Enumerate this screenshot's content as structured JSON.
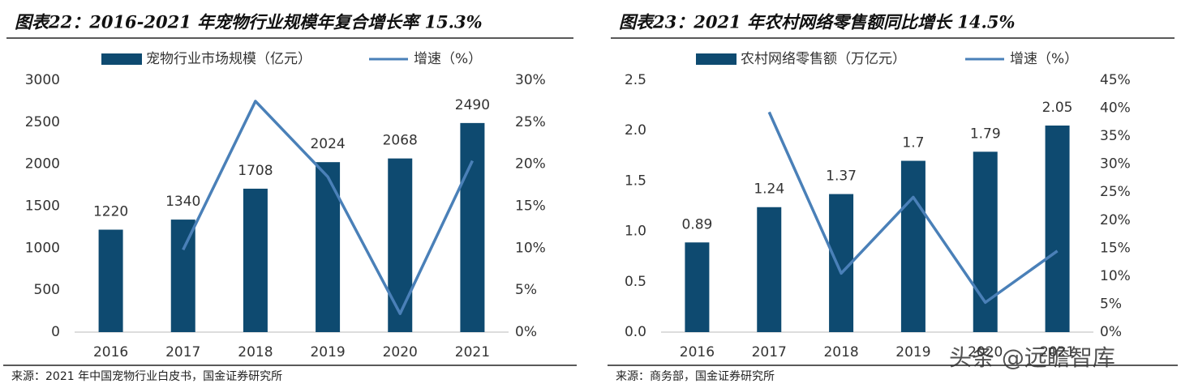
{
  "chart_data": [
    {
      "type": "bar",
      "title": "图表22：2016-2021 年宠物行业规模年复合增长率 15.3%",
      "categories": [
        "2016",
        "2017",
        "2018",
        "2019",
        "2020",
        "2021"
      ],
      "series": [
        {
          "name": "宠物行业市场规模（亿元）",
          "color": "#0e4a70",
          "values": [
            1220,
            1340,
            1708,
            2024,
            2068,
            2490
          ]
        },
        {
          "name": "增速（%）",
          "color": "#4a80b8",
          "axis": "y2",
          "values": [
            null,
            9.8,
            27.5,
            18.5,
            2.2,
            20.4
          ]
        }
      ],
      "ylim": [
        0,
        3000
      ],
      "yticks": [
        0,
        500,
        1000,
        1500,
        2000,
        2500,
        3000
      ],
      "y2lim": [
        0,
        30
      ],
      "y2ticks": [
        {
          "value": 0,
          "label": "0%"
        },
        {
          "value": 5,
          "label": "5%"
        },
        {
          "value": 10,
          "label": "10%"
        },
        {
          "value": 15,
          "label": "15%"
        },
        {
          "value": 20,
          "label": "20%"
        },
        {
          "value": 25,
          "label": "25%"
        },
        {
          "value": 30,
          "label": "30%"
        }
      ],
      "source": "来源：2021 年中国宠物行业白皮书，国金证券研究所"
    },
    {
      "type": "bar",
      "title": "图表23：2021 年农村网络零售额同比增长 14.5%",
      "categories": [
        "2016",
        "2017",
        "2018",
        "2019",
        "2020",
        "2021"
      ],
      "series": [
        {
          "name": "农村网络零售额（万亿元）",
          "color": "#0e4a70",
          "values": [
            0.89,
            1.24,
            1.37,
            1.7,
            1.79,
            2.05
          ]
        },
        {
          "name": "增速（%）",
          "color": "#4a80b8",
          "axis": "y2",
          "values": [
            null,
            39.3,
            10.5,
            24.1,
            5.3,
            14.5
          ]
        }
      ],
      "ylim": [
        0,
        2.5
      ],
      "yticks": [
        {
          "value": 0,
          "label": "0.0"
        },
        0.5,
        {
          "value": 1,
          "label": "1.0"
        },
        1.5,
        {
          "value": 2,
          "label": "2.0"
        },
        2.5
      ],
      "y2lim": [
        0,
        45
      ],
      "y2ticks": [
        {
          "value": 0,
          "label": "0%"
        },
        {
          "value": 5,
          "label": "5%"
        },
        {
          "value": 10,
          "label": "10%"
        },
        {
          "value": 15,
          "label": "15%"
        },
        {
          "value": 20,
          "label": "20%"
        },
        {
          "value": 25,
          "label": "25%"
        },
        {
          "value": 30,
          "label": "30%"
        },
        {
          "value": 35,
          "label": "35%"
        },
        {
          "value": 40,
          "label": "40%"
        },
        {
          "value": 45,
          "label": "45%"
        }
      ],
      "source": "来源：商务部，国金证券研究所"
    }
  ],
  "watermark": "头条 @远瞻智库"
}
